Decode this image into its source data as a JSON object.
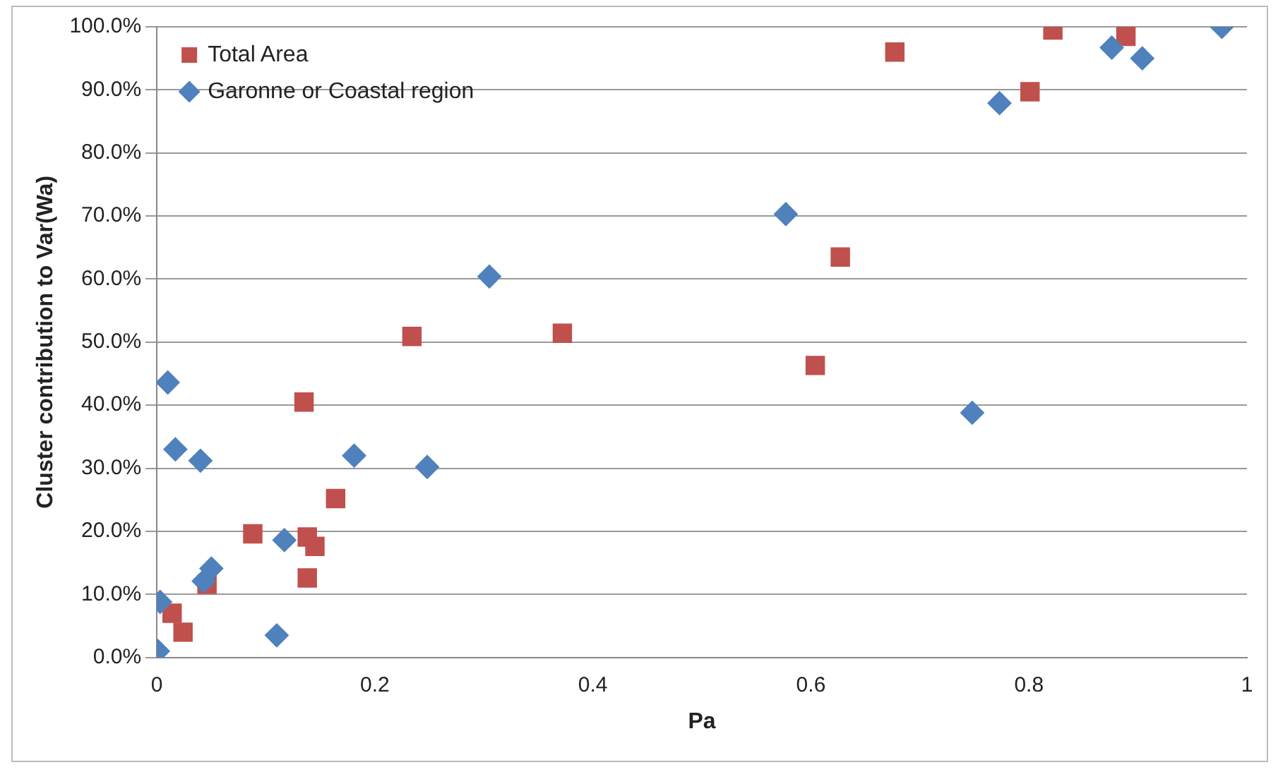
{
  "chart_data": {
    "type": "scatter",
    "xlabel": "Pa",
    "ylabel": "Cluster contribution to Var(Wa)",
    "xlim": [
      0,
      1
    ],
    "xticks": [
      0,
      0.2,
      0.4,
      0.6,
      0.8,
      1
    ],
    "ylim": [
      0,
      100
    ],
    "yticks": [
      {
        "value": 0,
        "label": "0.0%"
      },
      {
        "value": 10,
        "label": "10.0%"
      },
      {
        "value": 20,
        "label": "20.0%"
      },
      {
        "value": 30,
        "label": "30.0%"
      },
      {
        "value": 40,
        "label": "40.0%"
      },
      {
        "value": 50,
        "label": "50.0%"
      },
      {
        "value": 60,
        "label": "60.0%"
      },
      {
        "value": 70,
        "label": "70.0%"
      },
      {
        "value": 80,
        "label": "80.0%"
      },
      {
        "value": 90,
        "label": "90.0%"
      },
      {
        "value": 100,
        "label": "100.0%"
      }
    ],
    "grid": "y",
    "legend": "top left",
    "series": [
      {
        "name": "Total Area",
        "color": "#c0504d",
        "marker": "square",
        "x": [
          0.014,
          0.024,
          0.046,
          0.088,
          0.135,
          0.138,
          0.145,
          0.138,
          0.164,
          0.234,
          0.372,
          0.627,
          0.604,
          0.677,
          0.801,
          0.822,
          0.889
        ],
        "values": [
          7,
          4,
          11.6,
          19.6,
          40.5,
          19.1,
          17.6,
          12.6,
          25.2,
          50.9,
          51.4,
          63.5,
          46.3,
          96,
          89.7,
          99.5,
          98.5
        ]
      },
      {
        "name": "Garonne or Coastal region",
        "color": "#4f81bd",
        "marker": "diamond",
        "x": [
          0.01,
          0.017,
          0.04,
          0.003,
          0.001,
          0.043,
          0.05,
          0.117,
          0.11,
          0.181,
          0.248,
          0.305,
          0.577,
          0.748,
          0.773,
          0.876,
          0.904,
          0.977
        ],
        "values": [
          43.6,
          33,
          31.2,
          8.8,
          1,
          12.1,
          14.1,
          18.6,
          3.5,
          32,
          30.2,
          60.4,
          70.3,
          38.8,
          87.9,
          96.7,
          95,
          100
        ]
      }
    ]
  }
}
